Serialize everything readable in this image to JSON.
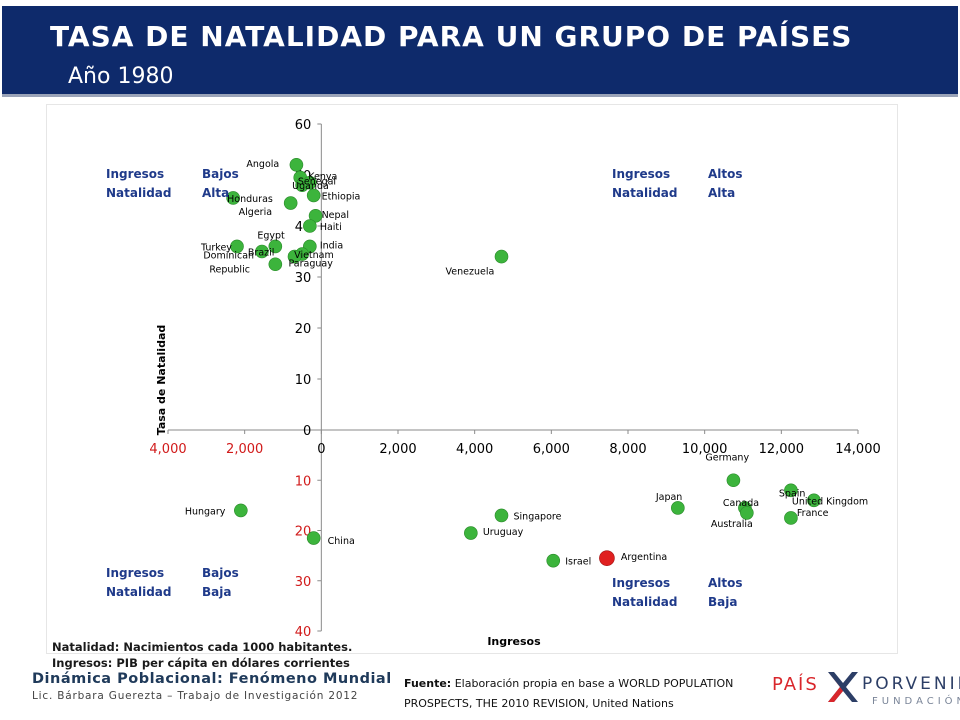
{
  "header": {
    "title": "TASA DE NATALIDAD PARA UN GRUPO DE PAÍSES",
    "subtitle": "Año 1980",
    "bar_color": "#0e2a6b"
  },
  "quadrants": {
    "top_left": [
      "Ingresos",
      "Bajos",
      "Natalidad",
      "Alta"
    ],
    "top_right": [
      "Ingresos",
      "Altos",
      "Natalidad",
      "Alta"
    ],
    "bottom_left": [
      "Ingresos",
      "Bajos",
      "Natalidad",
      "Baja"
    ],
    "bottom_right": [
      "Ingresos",
      "Altos",
      "Natalidad",
      "Baja"
    ]
  },
  "chart_data": {
    "type": "scatter",
    "xlabel": "Ingresos",
    "ylabel": "Tasa de Natalidad",
    "xlim": [
      -4000,
      14000
    ],
    "x_ticks": [
      "4,000",
      "2,000",
      "0",
      "2,000",
      "4,000",
      "6,000",
      "8,000",
      "10,000",
      "12,000",
      "14,000"
    ],
    "y_ticks_top": [
      "60",
      "50",
      "40",
      "30",
      "20",
      "10",
      "0"
    ],
    "y_ticks_bottom": [
      "10",
      "20",
      "30",
      "40"
    ],
    "grid": false,
    "point_color": "#3cb43c",
    "highlight_color": "#e02020",
    "points_top": [
      {
        "name": "Angola",
        "x": -650,
        "y": 52
      },
      {
        "name": "Kenya",
        "x": -550,
        "y": 49.5
      },
      {
        "name": "Senegal",
        "x": -300,
        "y": 48.5
      },
      {
        "name": "Uganda",
        "x": -500,
        "y": 48
      },
      {
        "name": "Ethiopia",
        "x": -200,
        "y": 46
      },
      {
        "name": "Honduras",
        "x": -2300,
        "y": 45.5
      },
      {
        "name": "Algeria",
        "x": -800,
        "y": 44.5
      },
      {
        "name": "Nepal",
        "x": -150,
        "y": 42
      },
      {
        "name": "Haiti",
        "x": -300,
        "y": 40
      },
      {
        "name": "Egypt",
        "x": -1200,
        "y": 36
      },
      {
        "name": "Turkey",
        "x": -2200,
        "y": 36
      },
      {
        "name": "India",
        "x": -300,
        "y": 36
      },
      {
        "name": "Brazil",
        "x": -1550,
        "y": 35
      },
      {
        "name": "Vietnam",
        "x": -500,
        "y": 34.5
      },
      {
        "name": "Paraguay",
        "x": -700,
        "y": 34
      },
      {
        "name": "Dominican Republic",
        "x": -1200,
        "y": 32.5
      },
      {
        "name": "Venezuela",
        "x": 4700,
        "y": 34
      }
    ],
    "points_bottom": [
      {
        "name": "Hungary",
        "x": -2100,
        "y": 16
      },
      {
        "name": "China",
        "x": -200,
        "y": 21.5
      },
      {
        "name": "Singapore",
        "x": 4700,
        "y": 17
      },
      {
        "name": "Uruguay",
        "x": 3900,
        "y": 20.5
      },
      {
        "name": "Israel",
        "x": 6050,
        "y": 26
      },
      {
        "name": "Argentina",
        "x": 7450,
        "y": 25.5,
        "highlight": true
      },
      {
        "name": "Japan",
        "x": 9300,
        "y": 15.5
      },
      {
        "name": "Germany",
        "x": 10750,
        "y": 10
      },
      {
        "name": "Canada",
        "x": 11050,
        "y": 15.5
      },
      {
        "name": "Australia",
        "x": 11100,
        "y": 16.5
      },
      {
        "name": "United Kingdom",
        "x": 12850,
        "y": 14
      },
      {
        "name": "Spain",
        "x": 12250,
        "y": 12
      },
      {
        "name": "France",
        "x": 12250,
        "y": 17.5
      }
    ]
  },
  "notes": {
    "natalidad": "Natalidad: Nacimientos cada 1000 habitantes.",
    "ingresos": "Ingresos: PIB per cápita en dólares corrientes"
  },
  "footer": {
    "title": "Dinámica Poblacional: Fenómeno Mundial",
    "subtitle": "Lic. Bárbara Guerezta – Trabajo de Investigación 2012",
    "source_label": "Fuente:",
    "source_text": "Elaboración propia en base a WORLD POPULATION PROSPECTS, THE 2010 REVISION, United Nations"
  },
  "logo": {
    "pais": "PAÍS",
    "porvenir": "PORVENIR",
    "fundacion": "FUNDACIÓN"
  }
}
